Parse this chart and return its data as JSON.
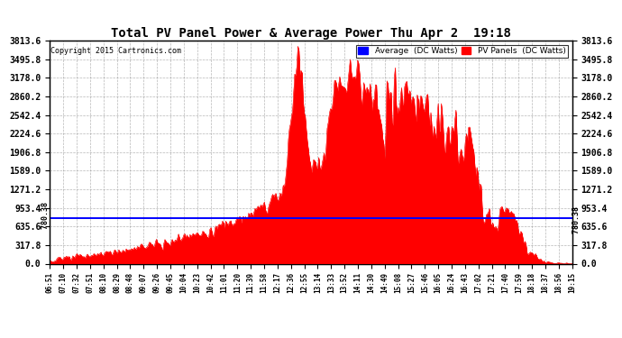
{
  "title": "Total PV Panel Power & Average Power Thu Apr 2  19:18",
  "copyright": "Copyright 2015 Cartronics.com",
  "avg_label": "Average  (DC Watts)",
  "pv_label": "PV Panels  (DC Watts)",
  "avg_value": 780.38,
  "ylim": [
    0.0,
    3813.6
  ],
  "yticks": [
    0.0,
    317.8,
    635.6,
    953.4,
    1271.2,
    1589.0,
    1906.8,
    2224.6,
    2542.4,
    2860.2,
    3178.0,
    3495.8,
    3813.6
  ],
  "bg_color": "#ffffff",
  "fill_color": "#ff0000",
  "avg_line_color": "#0000ff",
  "grid_color": "#888888",
  "xtick_labels": [
    "06:51",
    "07:10",
    "07:32",
    "07:51",
    "08:10",
    "08:29",
    "08:48",
    "09:07",
    "09:26",
    "09:45",
    "10:04",
    "10:23",
    "10:42",
    "11:01",
    "11:20",
    "11:39",
    "11:58",
    "12:17",
    "12:36",
    "12:55",
    "13:14",
    "13:33",
    "13:52",
    "14:11",
    "14:30",
    "14:49",
    "15:08",
    "15:27",
    "15:46",
    "16:05",
    "16:24",
    "16:43",
    "17:02",
    "17:21",
    "17:40",
    "17:59",
    "18:18",
    "18:37",
    "18:56",
    "19:15"
  ]
}
